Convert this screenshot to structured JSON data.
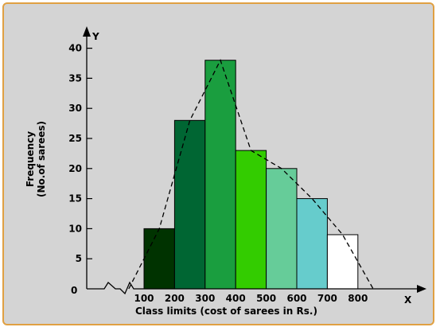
{
  "chart_data": {
    "type": "bar",
    "subtype": "histogram with frequency polygon",
    "xlabel": "Class limits (cost of sarees in Rs.)",
    "ylabel_line1": "Frequency",
    "ylabel_line2": "(No.of sarees)",
    "x_axis_letter": "X",
    "y_axis_letter": "Y",
    "origin_label": "0",
    "x_ticks": [
      100,
      200,
      300,
      400,
      500,
      600,
      700,
      800
    ],
    "y_ticks": [
      5,
      10,
      15,
      20,
      25,
      30,
      35,
      40
    ],
    "ylim": [
      0,
      42
    ],
    "bins": [
      {
        "from": 100,
        "to": 200,
        "value": 10,
        "color": "#003300"
      },
      {
        "from": 200,
        "to": 300,
        "value": 28,
        "color": "#006633"
      },
      {
        "from": 300,
        "to": 400,
        "value": 38,
        "color": "#1a9e3f"
      },
      {
        "from": 400,
        "to": 500,
        "value": 23,
        "color": "#33cc00"
      },
      {
        "from": 500,
        "to": 600,
        "value": 20,
        "color": "#66cc99"
      },
      {
        "from": 600,
        "to": 700,
        "value": 15,
        "color": "#66cccc"
      },
      {
        "from": 700,
        "to": 800,
        "value": 9,
        "color": "#ffffff"
      }
    ],
    "frequency_polygon": [
      {
        "x": 50,
        "y": 0
      },
      {
        "x": 150,
        "y": 10
      },
      {
        "x": 250,
        "y": 28
      },
      {
        "x": 350,
        "y": 38
      },
      {
        "x": 450,
        "y": 23
      },
      {
        "x": 550,
        "y": 20
      },
      {
        "x": 650,
        "y": 15
      },
      {
        "x": 750,
        "y": 9
      },
      {
        "x": 850,
        "y": 0
      }
    ],
    "grid": false,
    "legend": "none",
    "axis_break": true
  }
}
